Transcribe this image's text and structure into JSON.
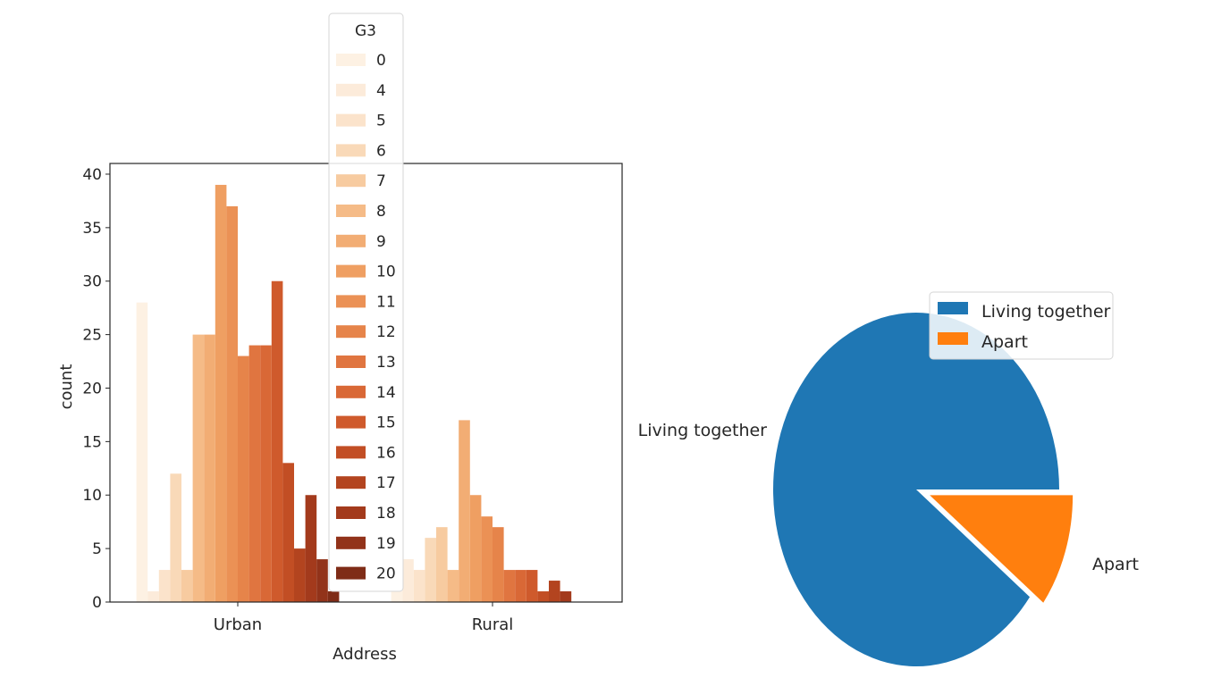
{
  "chart_data": [
    {
      "type": "bar",
      "xlabel": "Address",
      "ylabel": "count",
      "categories": [
        "Urban",
        "Rural"
      ],
      "ylim": [
        0,
        41
      ],
      "yticks": [
        0,
        5,
        10,
        15,
        20,
        25,
        30,
        35,
        40
      ],
      "grid": false,
      "legend": {
        "title": "G3",
        "placement": "top-center"
      },
      "series": [
        {
          "name": "0",
          "color": "#fdf1e3",
          "values": [
            28,
            1
          ]
        },
        {
          "name": "4",
          "color": "#fcebda",
          "values": [
            1,
            4
          ]
        },
        {
          "name": "5",
          "color": "#fbe3cb",
          "values": [
            3,
            3
          ]
        },
        {
          "name": "6",
          "color": "#f9d9b8",
          "values": [
            12,
            6
          ]
        },
        {
          "name": "7",
          "color": "#f7cba0",
          "values": [
            3,
            7
          ]
        },
        {
          "name": "8",
          "color": "#f5bb87",
          "values": [
            25,
            3
          ]
        },
        {
          "name": "9",
          "color": "#f2ad74",
          "values": [
            25,
            17
          ]
        },
        {
          "name": "10",
          "color": "#ef9f62",
          "values": [
            39,
            10
          ]
        },
        {
          "name": "11",
          "color": "#eb9155",
          "values": [
            37,
            8
          ]
        },
        {
          "name": "12",
          "color": "#e6844a",
          "values": [
            23,
            7
          ]
        },
        {
          "name": "13",
          "color": "#e07540",
          "values": [
            24,
            3
          ]
        },
        {
          "name": "14",
          "color": "#d96836",
          "values": [
            24,
            3
          ]
        },
        {
          "name": "15",
          "color": "#cf5a2c",
          "values": [
            30,
            3
          ]
        },
        {
          "name": "16",
          "color": "#c24e24",
          "values": [
            13,
            1
          ]
        },
        {
          "name": "17",
          "color": "#b3441f",
          "values": [
            5,
            2
          ]
        },
        {
          "name": "18",
          "color": "#a33a1c",
          "values": [
            10,
            1
          ]
        },
        {
          "name": "19",
          "color": "#92331a",
          "values": [
            4,
            0
          ]
        },
        {
          "name": "20",
          "color": "#7f2c17",
          "values": [
            1,
            0
          ]
        }
      ]
    },
    {
      "type": "pie",
      "slices": [
        {
          "label": "Living together",
          "value": 89.6,
          "color": "#1f77b4",
          "explode": 0
        },
        {
          "label": "Apart",
          "value": 10.4,
          "color": "#ff7f0e",
          "explode": 0.1
        }
      ],
      "startangle": 0,
      "legend": {
        "placement": "upper-right"
      }
    }
  ]
}
